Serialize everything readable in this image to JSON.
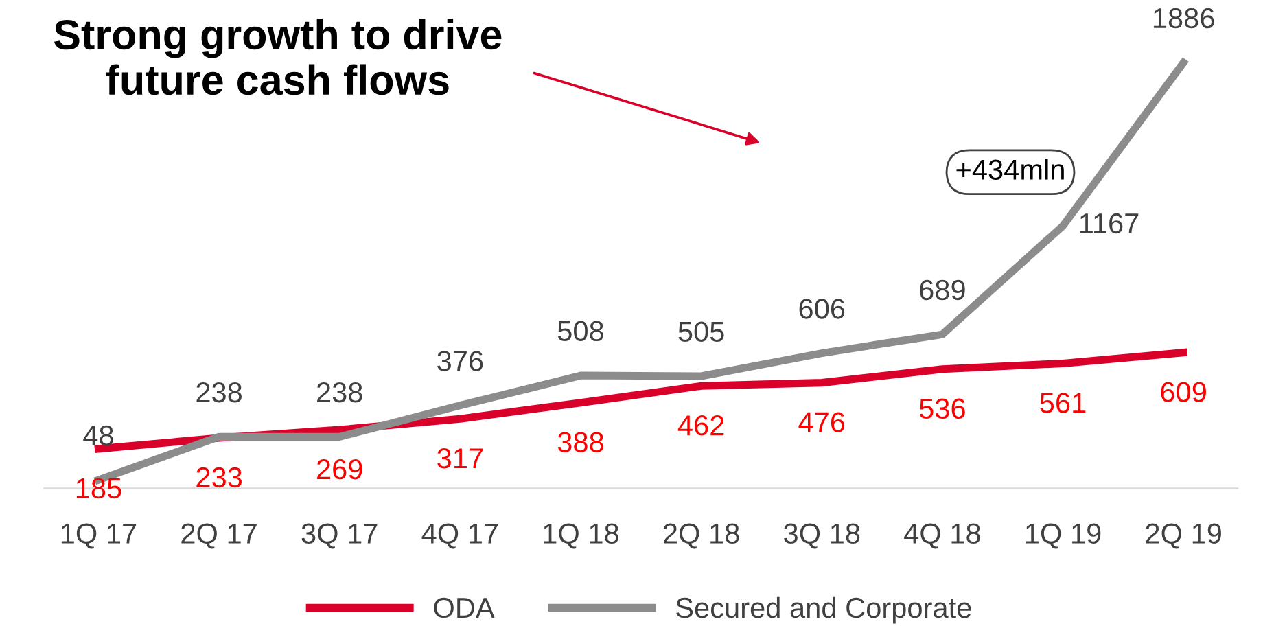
{
  "chart_data": {
    "type": "line",
    "title": "Strong growth to drive future cash flows",
    "categories": [
      "1Q 17",
      "2Q 17",
      "3Q 17",
      "4Q 17",
      "1Q 18",
      "2Q 18",
      "3Q 18",
      "4Q 18",
      "1Q 19",
      "2Q 19"
    ],
    "series": [
      {
        "name": "ODA",
        "color": "#d9002a",
        "values": [
          185,
          233,
          269,
          317,
          388,
          462,
          476,
          536,
          561,
          609
        ]
      },
      {
        "name": "Secured and Corporate",
        "color": "#8c8c8c",
        "values": [
          48,
          238,
          238,
          376,
          508,
          505,
          606,
          689,
          1167,
          1886
        ]
      }
    ],
    "annotations": [
      "+434mln"
    ],
    "grid": false,
    "legend": "bottom",
    "data_labels": true,
    "marker": "none",
    "line_style": "solid"
  }
}
